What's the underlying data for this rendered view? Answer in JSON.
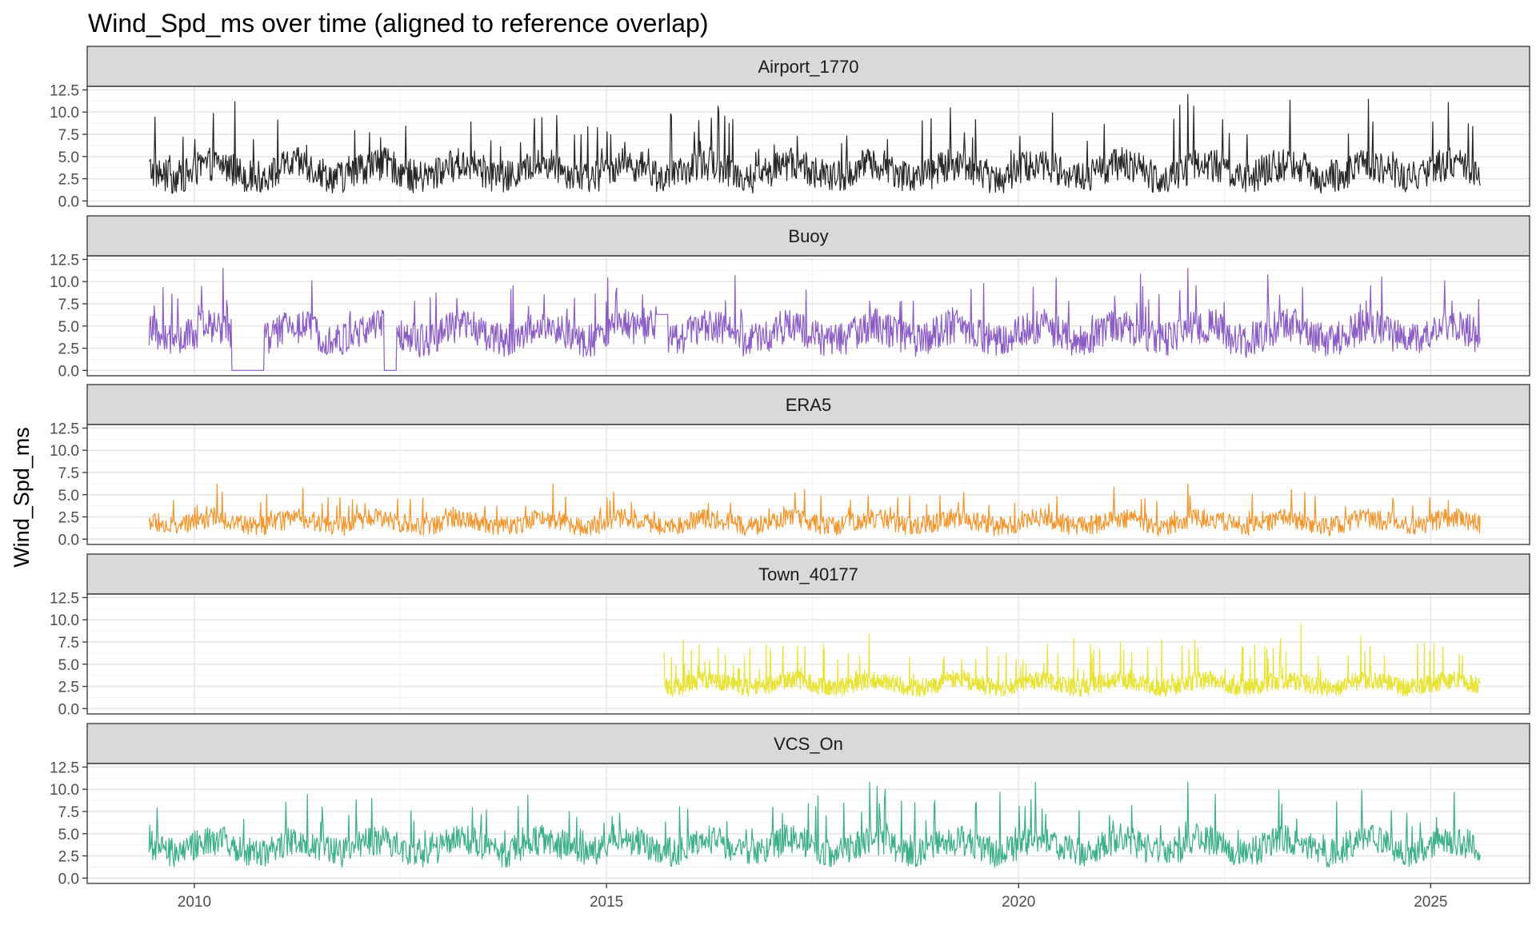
{
  "chart_data": {
    "type": "line",
    "title": "Wind_Spd_ms over time (aligned to reference overlap)",
    "xlabel": "",
    "ylabel": "Wind_Spd_ms",
    "x_range": [
      2008.7,
      2026.2
    ],
    "x_ticks": [
      "2010",
      "2015",
      "2020",
      "2025"
    ],
    "x_tick_values": [
      2010,
      2015,
      2020,
      2025
    ],
    "ylim": [
      -0.6,
      12.9
    ],
    "y_ticks": [
      "0.0",
      "2.5",
      "5.0",
      "7.5",
      "10.0",
      "12.5"
    ],
    "y_tick_values": [
      0,
      2.5,
      5,
      7.5,
      10,
      12.5
    ],
    "grid": true,
    "legend": "none",
    "facet": "vertical",
    "series": [
      {
        "name": "Airport_1770",
        "color": "#262626",
        "start": 2009.45,
        "end": 2025.6,
        "base": 3.4,
        "amp": 2.2,
        "peak": 12.0,
        "min": 0.5
      },
      {
        "name": "Buoy",
        "color": "#8A5CC4",
        "start": 2009.45,
        "end": 2025.6,
        "base": 4.2,
        "amp": 2.3,
        "peak": 11.5,
        "min": 0.0,
        "flat_segments": [
          {
            "from": 2010.45,
            "to": 2010.85,
            "value": 0.0
          },
          {
            "from": 2012.3,
            "to": 2012.45,
            "value": 0.0
          },
          {
            "from": 2015.6,
            "to": 2015.75,
            "value": 6.3
          }
        ]
      },
      {
        "name": "ERA5",
        "color": "#F0962E",
        "start": 2009.45,
        "end": 2025.6,
        "base": 1.9,
        "amp": 1.3,
        "peak": 6.2,
        "min": 0.0
      },
      {
        "name": "Town_40177",
        "color": "#E8E339",
        "start": 2015.7,
        "end": 2025.6,
        "base": 2.8,
        "amp": 1.2,
        "peak": 9.5,
        "min": 0.0
      },
      {
        "name": "VCS_On",
        "color": "#3CAE8A",
        "start": 2009.45,
        "end": 2025.6,
        "base": 3.6,
        "amp": 2.0,
        "peak": 10.8,
        "min": 1.0
      }
    ]
  }
}
